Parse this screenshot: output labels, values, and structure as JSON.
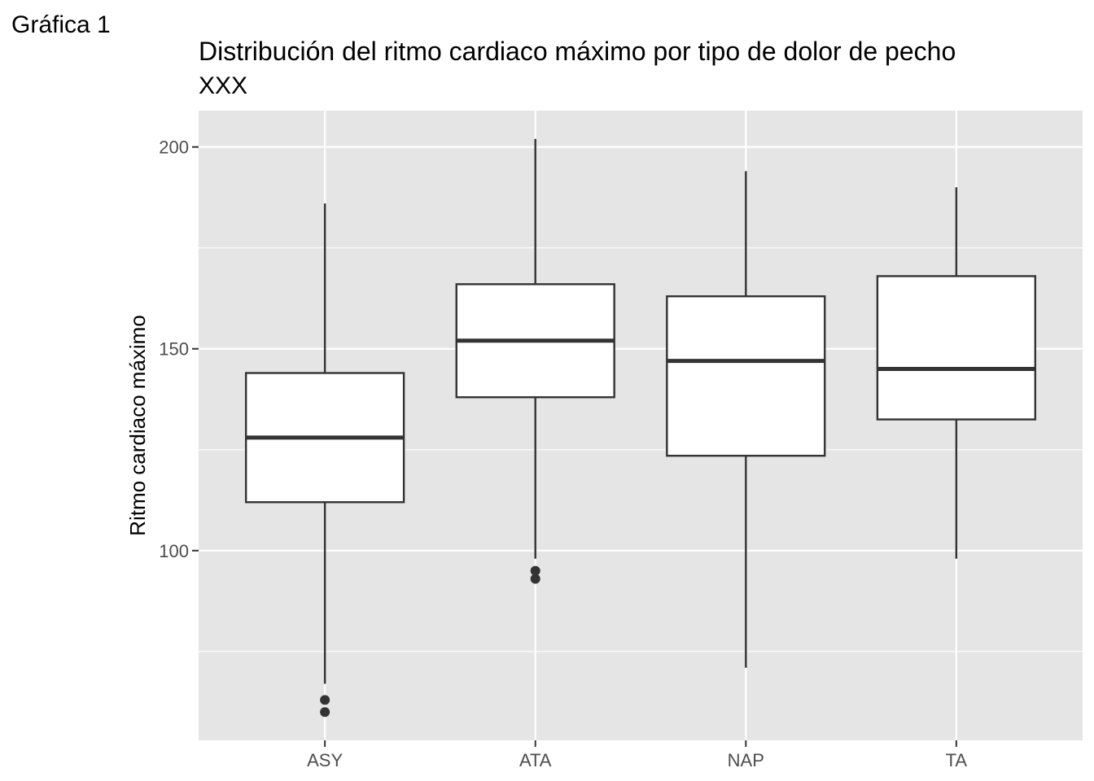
{
  "figure_label": "Gráfica 1",
  "chart_data": {
    "type": "boxplot",
    "title": "Distribución del ritmo cardiaco máximo por tipo de dolor de pecho",
    "subtitle": "XXX",
    "xlabel": "",
    "ylabel": "Ritmo cardiaco máximo",
    "ylim": [
      53,
      209
    ],
    "yticks": [
      100,
      150,
      200
    ],
    "grid": true,
    "colors": {
      "panel": "#e5e5e5",
      "grid_major": "#ffffff",
      "box_fill": "#ffffff",
      "box_line": "#333333"
    },
    "categories": [
      "ASY",
      "ATA",
      "NAP",
      "TA"
    ],
    "boxes": [
      {
        "category": "ASY",
        "min": 67,
        "q1": 112,
        "median": 128,
        "q3": 144,
        "max": 186,
        "outliers": [
          63,
          60
        ]
      },
      {
        "category": "ATA",
        "min": 98,
        "q1": 138,
        "median": 152,
        "q3": 166,
        "max": 202,
        "outliers": [
          95,
          93
        ]
      },
      {
        "category": "NAP",
        "min": 71,
        "q1": 123.5,
        "median": 147,
        "q3": 163,
        "max": 194,
        "outliers": []
      },
      {
        "category": "TA",
        "min": 98,
        "q1": 132.5,
        "median": 145,
        "q3": 168,
        "max": 190,
        "outliers": []
      }
    ]
  }
}
